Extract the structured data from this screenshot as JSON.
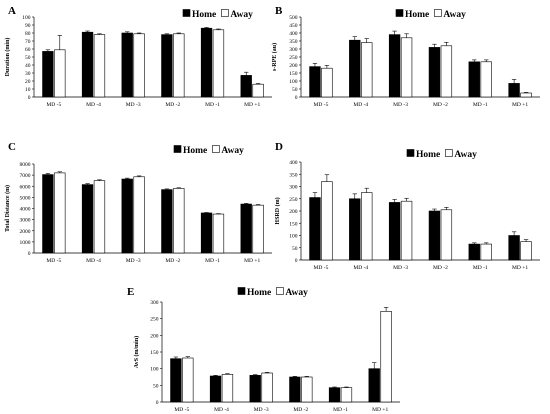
{
  "chart_data": [
    {
      "type": "bar",
      "panel": "A",
      "categories": [
        "MD -5",
        "MD -4",
        "MD -3",
        "MD -2",
        "MD -1",
        "MD +1"
      ],
      "series": [
        {
          "name": "Home",
          "values": [
            57,
            81,
            80,
            78,
            86,
            27
          ],
          "errors": [
            2,
            1.5,
            1.5,
            1,
            1,
            4
          ],
          "color": "#000000"
        },
        {
          "name": "Away",
          "values": [
            59,
            78,
            79,
            79,
            84,
            16
          ],
          "errors": [
            18,
            1,
            1,
            1,
            1,
            1
          ],
          "color": "#ffffff"
        }
      ],
      "ylabel": "Duration (min)",
      "ylim": [
        0,
        100
      ],
      "yticks": [
        0,
        10,
        20,
        30,
        40,
        50,
        60,
        70,
        80,
        90,
        100
      ],
      "legend_position": "top-right"
    },
    {
      "type": "bar",
      "panel": "B",
      "categories": [
        "MD -5",
        "MD -4",
        "MD -3",
        "MD -2",
        "MD -1",
        "MD +1"
      ],
      "series": [
        {
          "name": "Home",
          "values": [
            190,
            355,
            390,
            310,
            220,
            85
          ],
          "errors": [
            20,
            22,
            22,
            20,
            12,
            25
          ],
          "color": "#000000"
        },
        {
          "name": "Away",
          "values": [
            180,
            340,
            370,
            320,
            220,
            25
          ],
          "errors": [
            18,
            25,
            25,
            22,
            12,
            4
          ],
          "color": "#ffffff"
        }
      ],
      "ylabel": "s-RPE (au)",
      "ylim": [
        0,
        500
      ],
      "yticks": [
        0,
        50,
        100,
        150,
        200,
        250,
        300,
        350,
        400,
        450,
        500
      ],
      "legend_position": "top-right"
    },
    {
      "type": "bar",
      "panel": "C",
      "categories": [
        "MD -5",
        "MD -4",
        "MD -3",
        "MD -2",
        "MD -1",
        "MD +1"
      ],
      "series": [
        {
          "name": "Home",
          "values": [
            7050,
            6150,
            6650,
            5700,
            3600,
            4400
          ],
          "errors": [
            100,
            80,
            80,
            60,
            40,
            60
          ],
          "color": "#000000"
        },
        {
          "name": "Away",
          "values": [
            7200,
            6500,
            6850,
            5800,
            3500,
            4300
          ],
          "errors": [
            100,
            80,
            80,
            60,
            40,
            60
          ],
          "color": "#ffffff"
        }
      ],
      "ylabel": "Total Distance (m)",
      "ylim": [
        0,
        8000
      ],
      "yticks": [
        0,
        1000,
        2000,
        3000,
        4000,
        5000,
        6000,
        7000,
        8000
      ],
      "legend_position": "top-right"
    },
    {
      "type": "bar",
      "panel": "D",
      "categories": [
        "MD -5",
        "MD -4",
        "MD -3",
        "MD -2",
        "MD -1",
        "MD +1"
      ],
      "series": [
        {
          "name": "Home",
          "values": [
            255,
            250,
            235,
            200,
            65,
            100
          ],
          "errors": [
            20,
            20,
            12,
            8,
            5,
            15
          ],
          "color": "#000000"
        },
        {
          "name": "Away",
          "values": [
            320,
            275,
            240,
            205,
            65,
            75
          ],
          "errors": [
            28,
            18,
            12,
            10,
            5,
            8
          ],
          "color": "#ffffff"
        }
      ],
      "ylabel": "HSRD (m)",
      "ylim": [
        0,
        400
      ],
      "yticks": [
        0,
        50,
        100,
        150,
        200,
        250,
        300,
        350,
        400
      ],
      "legend_position": "top-right"
    },
    {
      "type": "bar",
      "panel": "E",
      "categories": [
        "MD -5",
        "MD -4",
        "MD -3",
        "MD -2",
        "MD -1",
        "MD +1"
      ],
      "series": [
        {
          "name": "Home",
          "values": [
            130,
            78,
            80,
            75,
            43,
            100
          ],
          "errors": [
            5,
            2,
            2,
            2,
            2,
            18
          ],
          "color": "#000000"
        },
        {
          "name": "Away",
          "values": [
            132,
            83,
            87,
            75,
            43,
            272
          ],
          "errors": [
            4,
            2,
            2,
            2,
            2,
            12
          ],
          "color": "#ffffff"
        }
      ],
      "ylabel": "AvS (m/min)",
      "ylim": [
        0,
        300
      ],
      "yticks": [
        0,
        50,
        100,
        150,
        200,
        250,
        300
      ],
      "legend_position": "top-right"
    }
  ]
}
